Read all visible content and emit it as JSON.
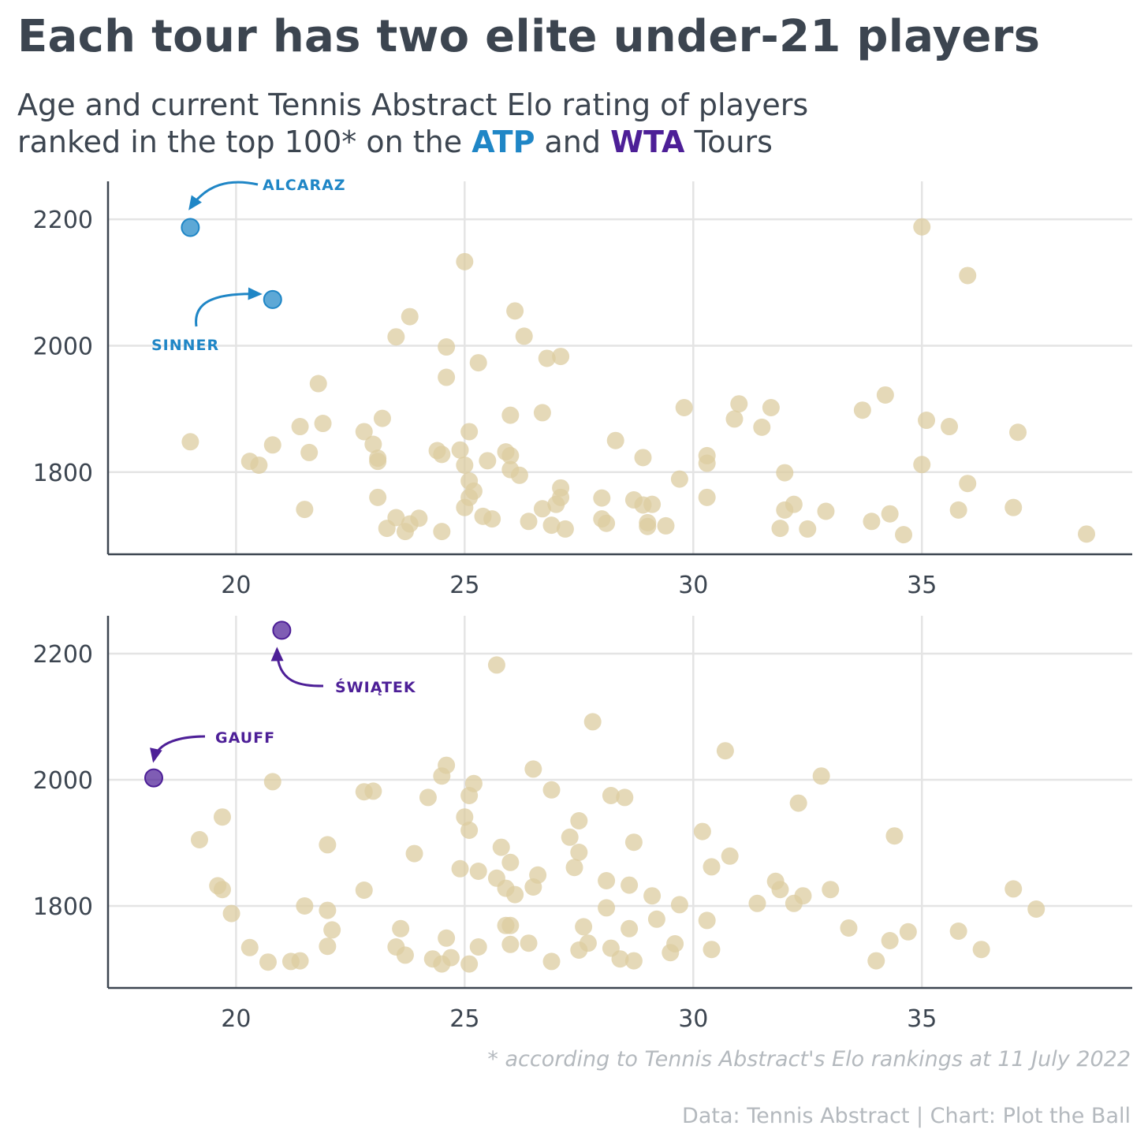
{
  "title": "Each tour has two elite under-21 players",
  "subtitle": {
    "line1": "Age and current Tennis Abstract Elo rating of players",
    "line2_prefix": "ranked in the top 100* on the ",
    "atp_label": "ATP",
    "and_text": " and ",
    "wta_label": "WTA",
    "line2_suffix": " Tours"
  },
  "footnote": "* according to Tennis Abstract's Elo rankings at 11 July 2022",
  "credit": "Data: Tennis Abstract | Chart: Plot the Ball",
  "colors": {
    "atp": "#1f86c6",
    "wta": "#4d1f97",
    "others": "#dccca0",
    "text": "#3c4550",
    "grid": "#e4e4e4",
    "axis": "#3c4550",
    "muted": "#b4b9be"
  },
  "chart_data": [
    {
      "type": "scatter",
      "tour": "ATP",
      "xlim": [
        17.2,
        39.6
      ],
      "ylim": [
        1670,
        2260
      ],
      "x_ticks": [
        20,
        25,
        30,
        35
      ],
      "y_ticks": [
        1800,
        2000,
        2200
      ],
      "highlights": [
        {
          "name": "ALCARAZ",
          "x": 19.0,
          "y": 2187
        },
        {
          "name": "SINNER",
          "x": 20.8,
          "y": 2073
        }
      ],
      "points": [
        [
          19.0,
          1848
        ],
        [
          20.3,
          1817
        ],
        [
          20.5,
          1811
        ],
        [
          20.8,
          1843
        ],
        [
          21.4,
          1872
        ],
        [
          21.5,
          1741
        ],
        [
          21.6,
          1831
        ],
        [
          21.8,
          1940
        ],
        [
          21.9,
          1877
        ],
        [
          22.8,
          1864
        ],
        [
          23.0,
          1844
        ],
        [
          23.1,
          1822
        ],
        [
          23.1,
          1817
        ],
        [
          23.1,
          1760
        ],
        [
          23.2,
          1885
        ],
        [
          23.3,
          1711
        ],
        [
          23.5,
          2014
        ],
        [
          23.5,
          1728
        ],
        [
          23.7,
          1706
        ],
        [
          23.8,
          2046
        ],
        [
          23.8,
          1718
        ],
        [
          24.0,
          1727
        ],
        [
          24.4,
          1834
        ],
        [
          24.5,
          1828
        ],
        [
          24.5,
          1706
        ],
        [
          24.6,
          1998
        ],
        [
          24.6,
          1950
        ],
        [
          24.9,
          1835
        ],
        [
          25.0,
          2133
        ],
        [
          25.0,
          1811
        ],
        [
          25.0,
          1744
        ],
        [
          25.1,
          1864
        ],
        [
          25.1,
          1786
        ],
        [
          25.1,
          1760
        ],
        [
          25.2,
          1770
        ],
        [
          25.3,
          1973
        ],
        [
          25.4,
          1730
        ],
        [
          25.5,
          1818
        ],
        [
          25.6,
          1726
        ],
        [
          25.9,
          1832
        ],
        [
          26.0,
          1890
        ],
        [
          26.0,
          1826
        ],
        [
          26.0,
          1804
        ],
        [
          26.1,
          2055
        ],
        [
          26.2,
          1795
        ],
        [
          26.3,
          2015
        ],
        [
          26.4,
          1722
        ],
        [
          26.7,
          1894
        ],
        [
          26.7,
          1742
        ],
        [
          26.8,
          1980
        ],
        [
          26.9,
          1716
        ],
        [
          27.0,
          1749
        ],
        [
          27.1,
          1983
        ],
        [
          27.1,
          1775
        ],
        [
          27.1,
          1760
        ],
        [
          27.2,
          1710
        ],
        [
          28.0,
          1759
        ],
        [
          28.0,
          1726
        ],
        [
          28.1,
          1719
        ],
        [
          28.3,
          1850
        ],
        [
          28.7,
          1756
        ],
        [
          28.9,
          1823
        ],
        [
          28.9,
          1748
        ],
        [
          29.0,
          1720
        ],
        [
          29.0,
          1714
        ],
        [
          29.1,
          1749
        ],
        [
          29.4,
          1715
        ],
        [
          29.7,
          1789
        ],
        [
          29.8,
          1902
        ],
        [
          30.3,
          1826
        ],
        [
          30.3,
          1814
        ],
        [
          30.3,
          1760
        ],
        [
          30.9,
          1884
        ],
        [
          31.0,
          1908
        ],
        [
          31.5,
          1871
        ],
        [
          31.7,
          1902
        ],
        [
          31.9,
          1711
        ],
        [
          32.0,
          1799
        ],
        [
          32.0,
          1740
        ],
        [
          32.2,
          1749
        ],
        [
          32.5,
          1710
        ],
        [
          32.9,
          1738
        ],
        [
          33.7,
          1898
        ],
        [
          33.9,
          1722
        ],
        [
          34.2,
          1922
        ],
        [
          34.3,
          1734
        ],
        [
          34.6,
          1701
        ],
        [
          35.0,
          2188
        ],
        [
          35.0,
          1812
        ],
        [
          35.1,
          1882
        ],
        [
          35.6,
          1872
        ],
        [
          35.8,
          1740
        ],
        [
          36.0,
          2111
        ],
        [
          36.0,
          1782
        ],
        [
          37.0,
          1744
        ],
        [
          37.1,
          1863
        ],
        [
          38.6,
          1702
        ]
      ]
    },
    {
      "type": "scatter",
      "tour": "WTA",
      "xlim": [
        17.2,
        39.6
      ],
      "ylim": [
        1670,
        2260
      ],
      "x_ticks": [
        20,
        25,
        30,
        35
      ],
      "y_ticks": [
        1800,
        2000,
        2200
      ],
      "highlights": [
        {
          "name": "ŚWIĄTEK",
          "x": 21.0,
          "y": 2237
        },
        {
          "name": "GAUFF",
          "x": 18.2,
          "y": 2003
        }
      ],
      "points": [
        [
          19.2,
          1905
        ],
        [
          19.6,
          1832
        ],
        [
          19.7,
          1941
        ],
        [
          19.7,
          1826
        ],
        [
          19.9,
          1788
        ],
        [
          20.3,
          1734
        ],
        [
          20.7,
          1711
        ],
        [
          20.8,
          1997
        ],
        [
          21.2,
          1712
        ],
        [
          21.4,
          1713
        ],
        [
          21.5,
          1800
        ],
        [
          22.0,
          1897
        ],
        [
          22.0,
          1793
        ],
        [
          22.0,
          1736
        ],
        [
          22.1,
          1762
        ],
        [
          22.8,
          1981
        ],
        [
          22.8,
          1825
        ],
        [
          23.0,
          1982
        ],
        [
          23.5,
          1735
        ],
        [
          23.6,
          1764
        ],
        [
          23.7,
          1722
        ],
        [
          23.9,
          1883
        ],
        [
          24.2,
          1972
        ],
        [
          24.3,
          1716
        ],
        [
          24.5,
          2006
        ],
        [
          24.5,
          1708
        ],
        [
          24.6,
          2023
        ],
        [
          24.6,
          1749
        ],
        [
          24.7,
          1718
        ],
        [
          24.9,
          1859
        ],
        [
          25.0,
          1941
        ],
        [
          25.1,
          1920
        ],
        [
          25.1,
          1975
        ],
        [
          25.1,
          1708
        ],
        [
          25.2,
          1994
        ],
        [
          25.3,
          1735
        ],
        [
          25.3,
          1855
        ],
        [
          25.7,
          2182
        ],
        [
          25.7,
          1844
        ],
        [
          25.8,
          1893
        ],
        [
          25.9,
          1828
        ],
        [
          25.9,
          1769
        ],
        [
          26.0,
          1869
        ],
        [
          26.0,
          1769
        ],
        [
          26.0,
          1739
        ],
        [
          26.1,
          1818
        ],
        [
          26.4,
          1741
        ],
        [
          26.5,
          2017
        ],
        [
          26.5,
          1830
        ],
        [
          26.6,
          1849
        ],
        [
          26.9,
          1984
        ],
        [
          26.9,
          1712
        ],
        [
          27.3,
          1909
        ],
        [
          27.4,
          1861
        ],
        [
          27.5,
          1935
        ],
        [
          27.5,
          1885
        ],
        [
          27.5,
          1730
        ],
        [
          27.6,
          1767
        ],
        [
          27.7,
          1741
        ],
        [
          27.8,
          2092
        ],
        [
          28.1,
          1840
        ],
        [
          28.1,
          1797
        ],
        [
          28.2,
          1975
        ],
        [
          28.2,
          1733
        ],
        [
          28.4,
          1716
        ],
        [
          28.5,
          1972
        ],
        [
          28.6,
          1833
        ],
        [
          28.6,
          1764
        ],
        [
          28.7,
          1901
        ],
        [
          28.7,
          1713
        ],
        [
          29.1,
          1816
        ],
        [
          29.2,
          1779
        ],
        [
          29.5,
          1726
        ],
        [
          29.6,
          1740
        ],
        [
          29.7,
          1802
        ],
        [
          30.2,
          1918
        ],
        [
          30.3,
          1777
        ],
        [
          30.4,
          1862
        ],
        [
          30.4,
          1731
        ],
        [
          30.7,
          2046
        ],
        [
          30.8,
          1879
        ],
        [
          31.4,
          1804
        ],
        [
          31.8,
          1839
        ],
        [
          31.9,
          1826
        ],
        [
          32.2,
          1804
        ],
        [
          32.3,
          1963
        ],
        [
          32.4,
          1816
        ],
        [
          32.8,
          2006
        ],
        [
          33.0,
          1826
        ],
        [
          33.4,
          1765
        ],
        [
          34.0,
          1713
        ],
        [
          34.3,
          1745
        ],
        [
          34.4,
          1911
        ],
        [
          34.7,
          1759
        ],
        [
          35.8,
          1760
        ],
        [
          36.3,
          1731
        ],
        [
          37.0,
          1827
        ],
        [
          37.5,
          1795
        ]
      ]
    }
  ]
}
